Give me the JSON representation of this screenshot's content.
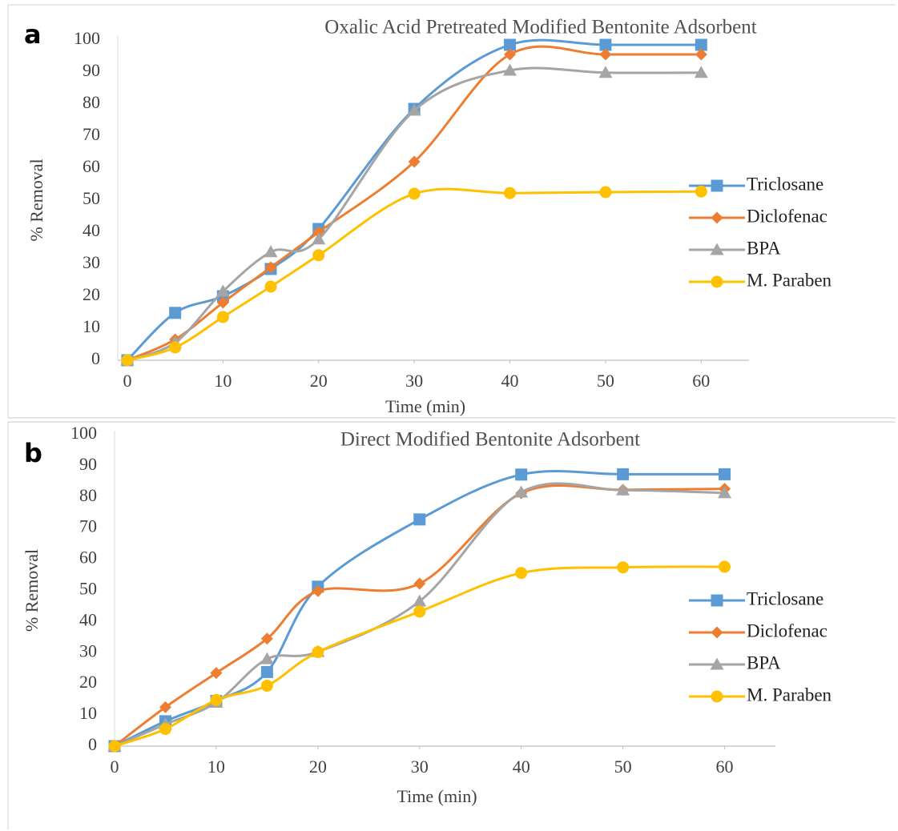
{
  "chart_data": [
    {
      "type": "line",
      "label": "a",
      "title": "Oxalic Acid Pretreated Modified Bentonite Adsorbent",
      "x_label": "Time (min)",
      "y_label": "% Removal",
      "x": [
        0,
        5,
        10,
        15,
        20,
        30,
        40,
        50,
        60
      ],
      "series": [
        {
          "name": "Triclosane",
          "color": "#5b9bd5",
          "marker": "square",
          "values": [
            0,
            14.8,
            20,
            28.5,
            41,
            78.5,
            98.5,
            98.5,
            98.5
          ]
        },
        {
          "name": "Diclofenac",
          "color": "#ed7d31",
          "marker": "diamond",
          "values": [
            0,
            6.5,
            18,
            29,
            40,
            62,
            95.5,
            95.5,
            95.5
          ]
        },
        {
          "name": "BPA",
          "color": "#a5a5a5",
          "marker": "triangle",
          "values": [
            0,
            5.5,
            21.5,
            33.8,
            37.8,
            78,
            90.5,
            89.8,
            89.8
          ]
        },
        {
          "name": "M. Paraben",
          "color": "#ffc000",
          "marker": "circle",
          "values": [
            0,
            4,
            13.5,
            23,
            32.8,
            52,
            52.2,
            52.5,
            52.7
          ]
        }
      ],
      "xlim": [
        -1,
        65
      ],
      "xticks": [
        0,
        10,
        20,
        30,
        40,
        50,
        60
      ],
      "ylim": [
        0,
        100
      ],
      "yticks": [
        0,
        10,
        20,
        30,
        40,
        50,
        60,
        70,
        80,
        90,
        100
      ],
      "smooth": true,
      "grid": false,
      "legend": "right"
    },
    {
      "type": "line",
      "label": "b",
      "title": "Direct Modified Bentonite Adsorbent",
      "x_label": "Time (min)",
      "y_label": "% Removal",
      "x": [
        0,
        5,
        10,
        15,
        20,
        30,
        40,
        50,
        60
      ],
      "series": [
        {
          "name": "Triclosane",
          "color": "#5b9bd5",
          "marker": "square",
          "values": [
            0,
            8,
            14.5,
            23.8,
            51.2,
            72.8,
            87.2,
            87.3,
            87.3
          ]
        },
        {
          "name": "Diclofenac",
          "color": "#ed7d31",
          "marker": "diamond",
          "values": [
            0,
            12.5,
            23.5,
            34.5,
            49.8,
            52.2,
            81.2,
            82.3,
            82.6
          ]
        },
        {
          "name": "BPA",
          "color": "#a5a5a5",
          "marker": "triangle",
          "values": [
            0,
            7,
            14,
            28,
            30.3,
            46.5,
            81.5,
            82.2,
            81.3
          ]
        },
        {
          "name": "M. Paraben",
          "color": "#ffc000",
          "marker": "circle",
          "values": [
            0,
            5.5,
            14.8,
            19.4,
            30.2,
            43.2,
            55.6,
            57.4,
            57.6
          ]
        }
      ],
      "xlim": [
        0,
        65
      ],
      "xticks": [
        0,
        10,
        20,
        30,
        40,
        50,
        60
      ],
      "ylim": [
        0,
        100
      ],
      "yticks": [
        0,
        10,
        20,
        30,
        40,
        50,
        60,
        70,
        80,
        90,
        100
      ],
      "smooth": true,
      "grid": false,
      "legend": "right"
    }
  ]
}
